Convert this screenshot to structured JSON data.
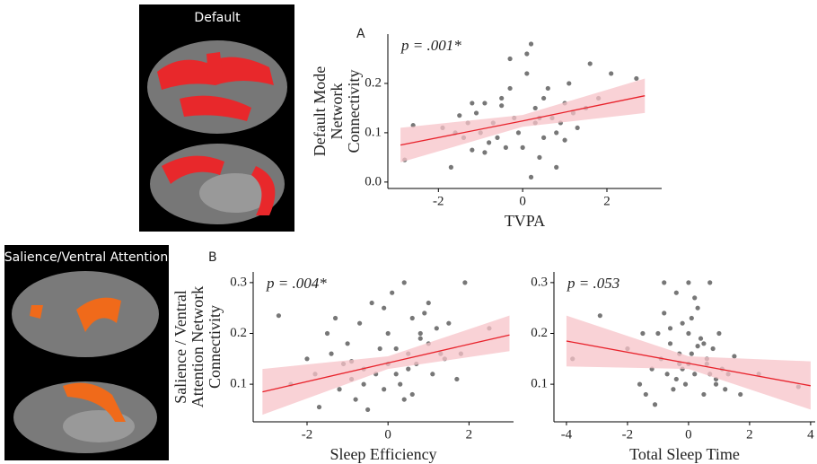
{
  "images": [
    {
      "label": "Default"
    },
    {
      "label": "Salience/Ventral Attention"
    }
  ],
  "panels": {
    "a": "A",
    "b": "B"
  },
  "chart_data": [
    {
      "type": "scatter",
      "annotation": "p = .001*",
      "ylabel_lines": [
        "Default Mode",
        "Network",
        "Connectivity"
      ],
      "xlabel": "TVPA",
      "xlim": [
        -3.2,
        3.3
      ],
      "ylim": [
        -0.013,
        0.3
      ],
      "xticks": [
        -2,
        0,
        2
      ],
      "yticks": [
        {
          "value": 0,
          "label": "0.0"
        },
        0.1,
        0.2
      ],
      "point_color": "#4a4a4a",
      "line_color": "#e8222b",
      "band_color": "#f7c3c8",
      "x": [
        -2.8,
        -2.6,
        -1.9,
        -1.7,
        -1.6,
        -1.5,
        -1.4,
        -1.3,
        -1.2,
        -1.1,
        -1.0,
        -0.9,
        -0.8,
        -0.7,
        -0.6,
        -0.5,
        -0.4,
        -0.3,
        -0.2,
        -0.1,
        0.0,
        0.1,
        0.2,
        0.3,
        0.3,
        0.4,
        0.5,
        0.6,
        0.7,
        0.8,
        0.9,
        1.0,
        1.1,
        1.2,
        1.3,
        1.5,
        1.6,
        1.8,
        2.1,
        2.7,
        -0.9,
        -0.3,
        0.2,
        0.5,
        0.8,
        -1.2,
        0.1,
        0.4,
        1.0,
        -0.5
      ],
      "y": [
        0.045,
        0.115,
        0.11,
        0.03,
        0.1,
        0.135,
        0.09,
        0.12,
        0.065,
        0.14,
        0.1,
        0.16,
        0.08,
        0.12,
        0.09,
        0.155,
        0.07,
        0.25,
        0.13,
        0.1,
        0.07,
        0.22,
        0.28,
        0.15,
        0.12,
        0.05,
        0.17,
        0.19,
        0.13,
        0.1,
        0.12,
        0.16,
        0.2,
        0.14,
        0.11,
        0.15,
        0.24,
        0.17,
        0.22,
        0.21,
        0.06,
        0.19,
        0.01,
        0.09,
        0.03,
        0.16,
        0.26,
        0.13,
        0.085,
        0.17
      ],
      "fit": {
        "x": [
          -2.9,
          0,
          2.9
        ],
        "y": [
          0.075,
          0.124,
          0.175
        ],
        "lower": [
          0.04,
          0.112,
          0.14
        ],
        "upper": [
          0.11,
          0.136,
          0.21
        ]
      }
    },
    {
      "type": "scatter",
      "annotation": "p = .004*",
      "ylabel_lines": [
        "Salience / Ventral",
        "Attention Network",
        "Connectivity"
      ],
      "xlabel": "Sleep Efficiency",
      "xlim": [
        -3.33,
        3.1
      ],
      "ylim": [
        0.026,
        0.321
      ],
      "xticks": [
        -2,
        0,
        2
      ],
      "yticks": [
        0.1,
        0.2,
        0.3
      ],
      "point_color": "#4a4a4a",
      "line_color": "#e8222b",
      "band_color": "#f7c3c8",
      "x": [
        -2.7,
        -2.4,
        -2.0,
        -1.8,
        -1.7,
        -1.5,
        -1.4,
        -1.2,
        -1.1,
        -1.0,
        -0.9,
        -0.8,
        -0.7,
        -0.6,
        -0.5,
        -0.4,
        -0.3,
        -0.2,
        -0.1,
        0.0,
        0.1,
        0.2,
        0.3,
        0.4,
        0.5,
        0.6,
        0.7,
        0.8,
        0.9,
        1.0,
        1.1,
        1.2,
        1.3,
        1.5,
        1.7,
        1.9,
        2.5,
        -0.6,
        -0.1,
        0.4,
        0.8,
        1.4,
        -1.3,
        0.2,
        0.6,
        -0.9,
        1.0,
        0.0,
        0.5,
        1.8
      ],
      "y": [
        0.235,
        0.1,
        0.15,
        0.12,
        0.055,
        0.2,
        0.16,
        0.09,
        0.14,
        0.18,
        0.11,
        0.07,
        0.22,
        0.13,
        0.05,
        0.26,
        0.12,
        0.17,
        0.09,
        0.14,
        0.28,
        0.12,
        0.1,
        0.3,
        0.16,
        0.23,
        0.14,
        0.2,
        0.24,
        0.18,
        0.12,
        0.21,
        0.16,
        0.22,
        0.11,
        0.3,
        0.21,
        0.1,
        0.25,
        0.07,
        0.19,
        0.15,
        0.23,
        0.17,
        0.08,
        0.145,
        0.26,
        0.2,
        0.13,
        0.16
      ],
      "fit": {
        "x": [
          -3.1,
          0,
          3
        ],
        "y": [
          0.085,
          0.142,
          0.197
        ],
        "lower": [
          0.04,
          0.13,
          0.165
        ],
        "upper": [
          0.13,
          0.155,
          0.235
        ]
      }
    },
    {
      "type": "scatter",
      "annotation": "p = .053",
      "xlabel": "Total Sleep Time",
      "xlim": [
        -4.41,
        4.15
      ],
      "ylim": [
        0.026,
        0.321
      ],
      "xticks": [
        -4,
        -2,
        0,
        2,
        4
      ],
      "yticks": [
        0.1,
        0.2,
        0.3
      ],
      "point_color": "#4a4a4a",
      "line_color": "#e8222b",
      "band_color": "#f7c3c8",
      "x": [
        -3.8,
        -2.9,
        -2.0,
        -1.6,
        -1.4,
        -1.2,
        -1.0,
        -0.9,
        -0.8,
        -0.7,
        -0.6,
        -0.5,
        -0.4,
        -0.3,
        -0.2,
        -0.1,
        0.0,
        0.1,
        0.2,
        0.3,
        0.4,
        0.5,
        0.6,
        0.7,
        0.8,
        0.9,
        1.0,
        1.1,
        1.3,
        1.5,
        1.7,
        2.3,
        3.6,
        -0.8,
        -0.4,
        0.0,
        0.3,
        0.6,
        -1.1,
        -0.2,
        0.2,
        0.9,
        -0.6,
        0.5,
        1.2,
        -0.3,
        0.1,
        -1.5,
        0.7,
        0.0
      ],
      "y": [
        0.15,
        0.235,
        0.17,
        0.1,
        0.08,
        0.13,
        0.2,
        0.15,
        0.3,
        0.12,
        0.18,
        0.09,
        0.28,
        0.14,
        0.22,
        0.1,
        0.3,
        0.16,
        0.12,
        0.25,
        0.19,
        0.08,
        0.14,
        0.3,
        0.17,
        0.11,
        0.2,
        0.13,
        0.12,
        0.155,
        0.08,
        0.12,
        0.095,
        0.24,
        0.11,
        0.2,
        0.175,
        0.15,
        0.06,
        0.13,
        0.27,
        0.1,
        0.21,
        0.18,
        0.09,
        0.16,
        0.23,
        0.2,
        0.12,
        0.14
      ],
      "fit": {
        "x": [
          -4,
          0,
          4
        ],
        "y": [
          0.185,
          0.141,
          0.097
        ],
        "lower": [
          0.135,
          0.13,
          0.05
        ],
        "upper": [
          0.235,
          0.155,
          0.145
        ]
      }
    }
  ]
}
